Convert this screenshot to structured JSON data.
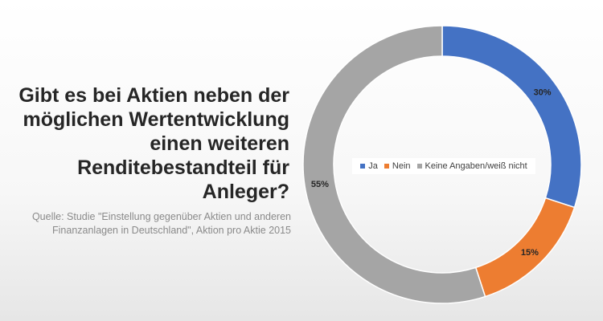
{
  "title": "Gibt es bei Aktien neben der möglichen Wertentwicklung einen weiteren Renditebestandteil für Anleger?",
  "title_lines": [
    "Gibt es bei Aktien neben der",
    "möglichen Wertentwicklung",
    "einen weiteren",
    "Renditebestandteil für",
    "Anleger?"
  ],
  "source_lines": [
    "Quelle: Studie \"Einstellung gegenüber Aktien und anderen",
    "Finanzanlagen in Deutschland\", Aktion pro Aktie 2015"
  ],
  "chart_data": {
    "type": "pie",
    "variant": "donut",
    "categories": [
      "Ja",
      "Nein",
      "Keine Angaben/weiß nicht"
    ],
    "values": [
      30,
      15,
      55
    ],
    "labels": [
      "30%",
      "15%",
      "55%"
    ],
    "colors": [
      "#4472C4",
      "#ED7D31",
      "#A5A5A5"
    ],
    "legend_position": "center"
  }
}
